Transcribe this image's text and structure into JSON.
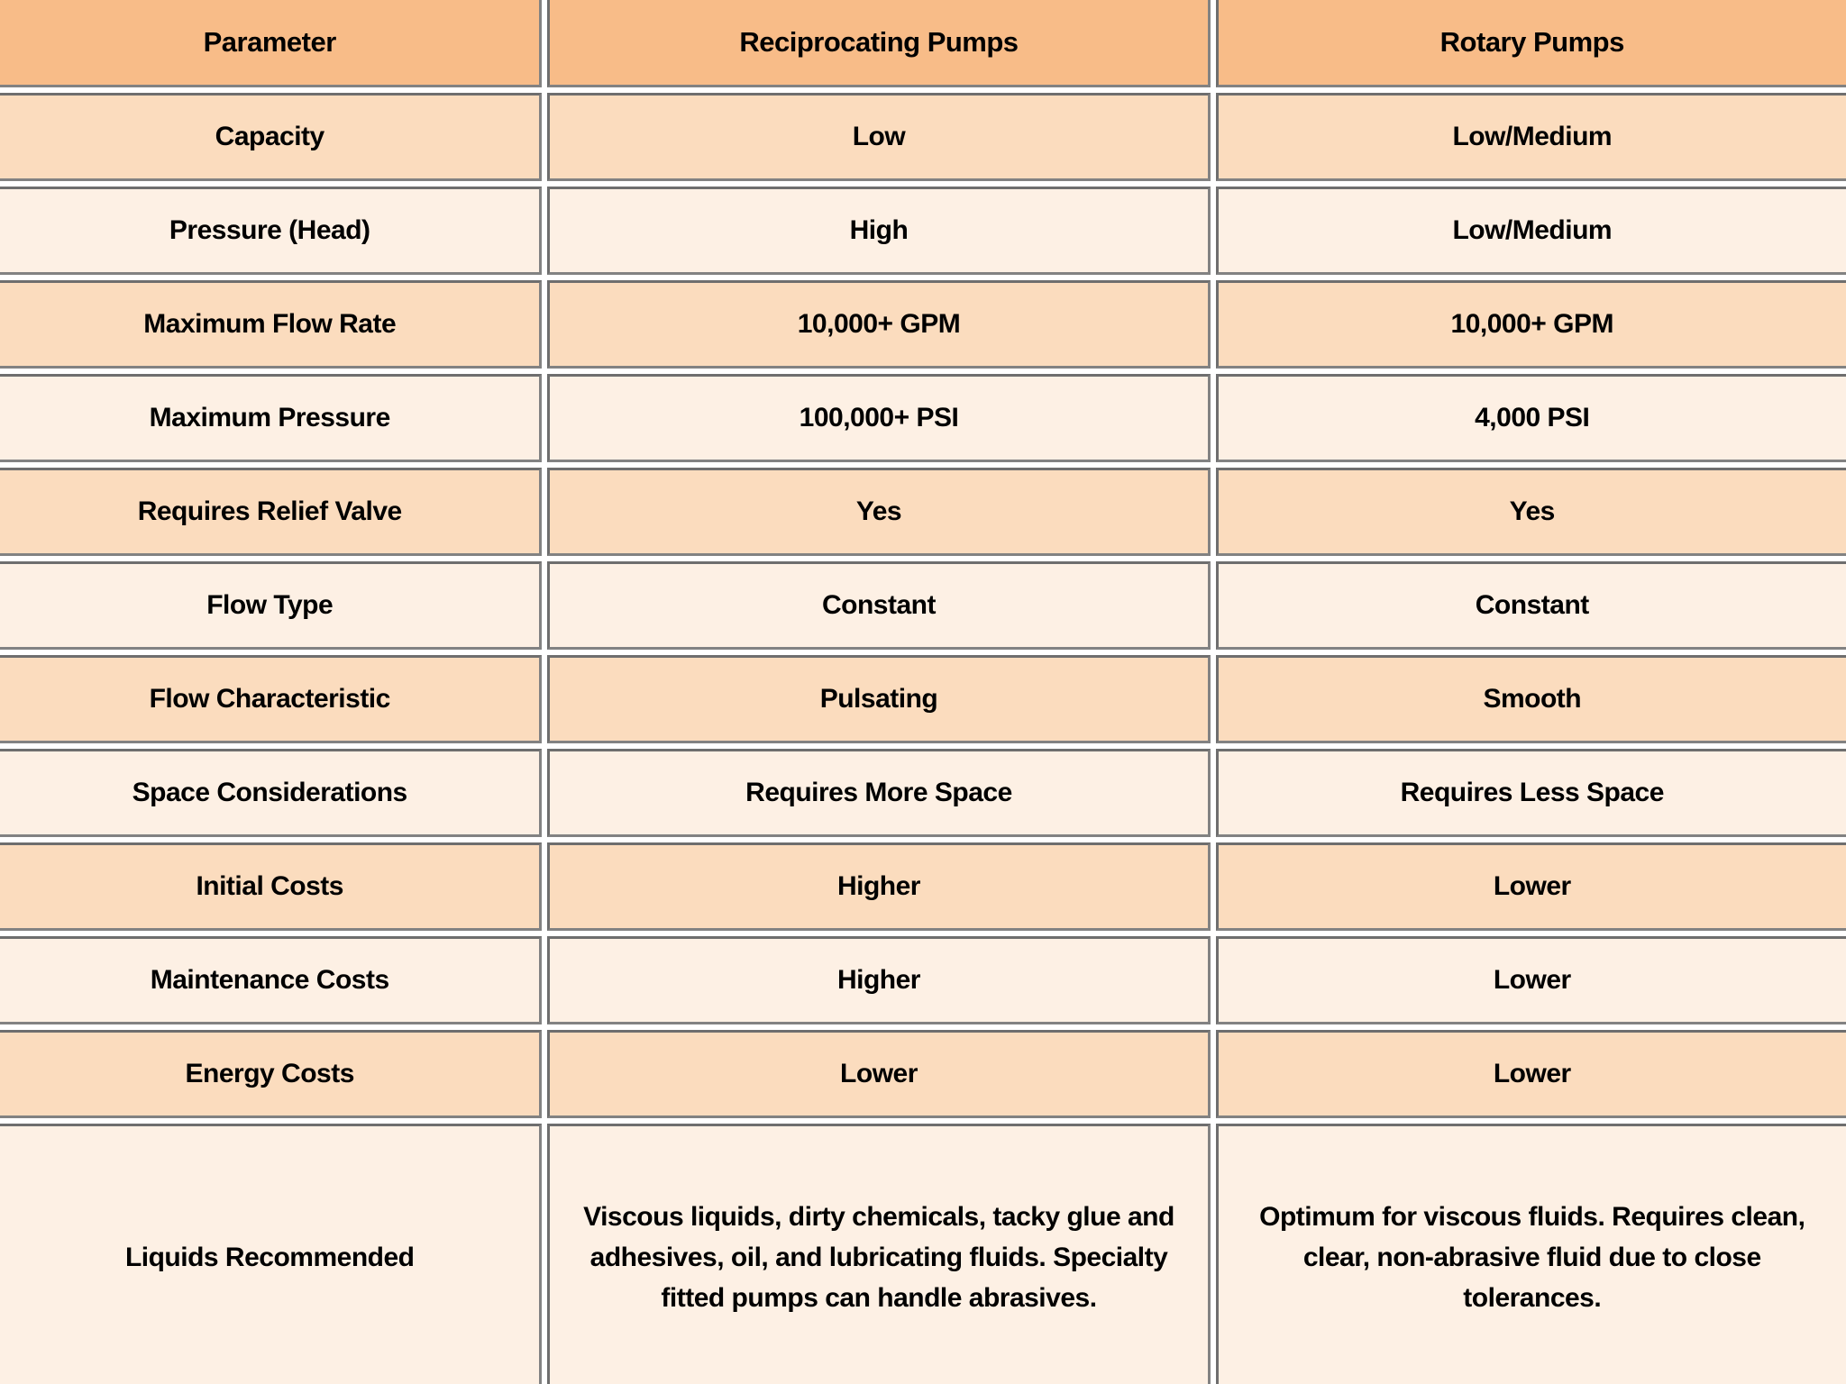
{
  "table": {
    "columns": [
      "Parameter",
      "Reciprocating Pumps",
      "Rotary Pumps"
    ],
    "rows": [
      {
        "parameter": "Capacity",
        "reciprocating": "Low",
        "rotary": "Low/Medium"
      },
      {
        "parameter": "Pressure (Head)",
        "reciprocating": "High",
        "rotary": "Low/Medium"
      },
      {
        "parameter": "Maximum Flow Rate",
        "reciprocating": "10,000+ GPM",
        "rotary": "10,000+ GPM"
      },
      {
        "parameter": "Maximum Pressure",
        "reciprocating": "100,000+ PSI",
        "rotary": "4,000 PSI"
      },
      {
        "parameter": "Requires Relief Valve",
        "reciprocating": "Yes",
        "rotary": "Yes"
      },
      {
        "parameter": "Flow Type",
        "reciprocating": "Constant",
        "rotary": "Constant"
      },
      {
        "parameter": "Flow Characteristic",
        "reciprocating": "Pulsating",
        "rotary": "Smooth"
      },
      {
        "parameter": "Space Considerations",
        "reciprocating": "Requires More Space",
        "rotary": "Requires Less Space"
      },
      {
        "parameter": "Initial Costs",
        "reciprocating": "Higher",
        "rotary": "Lower"
      },
      {
        "parameter": "Maintenance Costs",
        "reciprocating": "Higher",
        "rotary": "Lower"
      },
      {
        "parameter": "Energy Costs",
        "reciprocating": "Lower",
        "rotary": "Lower"
      },
      {
        "parameter": "Liquids Recommended",
        "reciprocating": "Viscous liquids, dirty chemicals, tacky glue and adhesives, oil, and lubricating fluids. Specialty fitted pumps can handle abrasives.",
        "rotary": "Optimum for viscous fluids. Requires clean, clear, non-abrasive fluid due to close tolerances."
      }
    ]
  },
  "colors": {
    "header_bg": "#f8bc88",
    "row_peach_bg": "#fbdcbe",
    "row_cream_bg": "#fdf0e4",
    "cell_border": "#7e7e7e",
    "gutter": "#ffffff",
    "text": "#000000"
  }
}
